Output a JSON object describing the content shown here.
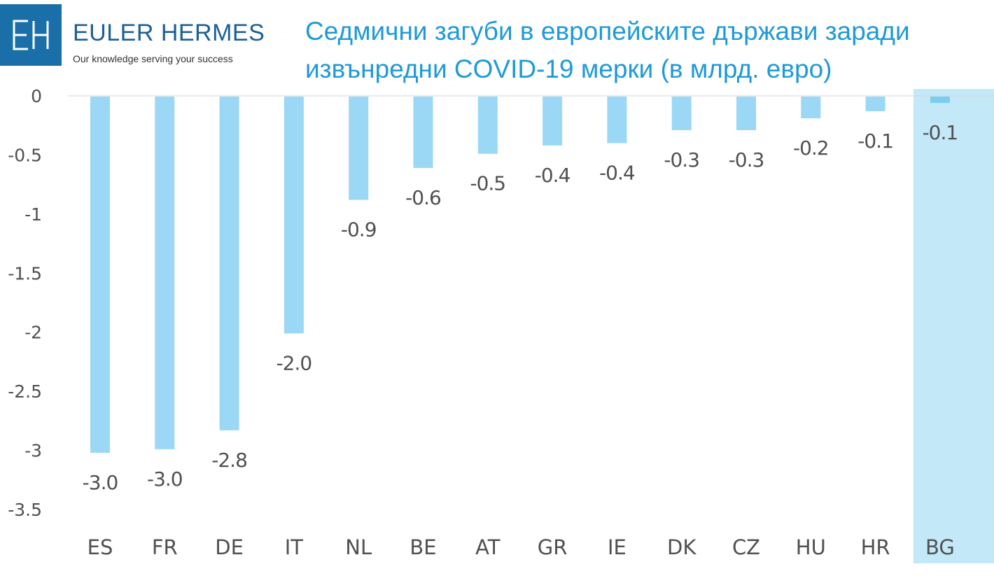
{
  "logo": {
    "mark": "EH",
    "name": "EULER HERMES",
    "tagline": "Our knowledge serving your success"
  },
  "colors": {
    "bar": "#9bd8f6",
    "highlight_bar": "#7acdf0",
    "highlight_band": "#c3e9f9",
    "axis_text": "#505050",
    "title": "#1f9ad6",
    "logo_bg": "#1a6fa8"
  },
  "chart_data": {
    "type": "bar",
    "title": "Седмични загуби в европейските държави заради извънредни COVID-19 мерки (в млрд. евро)",
    "categories": [
      "ES",
      "FR",
      "DE",
      "IT",
      "NL",
      "BE",
      "AT",
      "GR",
      "IE",
      "DK",
      "CZ",
      "HU",
      "HR",
      "BG"
    ],
    "values": [
      -3.02,
      -2.99,
      -2.83,
      -2.01,
      -0.88,
      -0.61,
      -0.49,
      -0.42,
      -0.4,
      -0.29,
      -0.29,
      -0.19,
      -0.13,
      -0.06
    ],
    "labels": [
      "-3.0",
      "-3.0",
      "-2.8",
      "-2.0",
      "-0.9",
      "-0.6",
      "-0.5",
      "-0.4",
      "-0.4",
      "-0.3",
      "-0.3",
      "-0.2",
      "-0.1",
      "-0.1"
    ],
    "highlight": "BG",
    "yticks": [
      0,
      -0.5,
      -1,
      -1.5,
      -2,
      -2.5,
      -3,
      -3.5
    ],
    "ytick_labels": [
      "0",
      "-0.5",
      "-1",
      "-1.5",
      "-2",
      "-2.5",
      "-3",
      "-3.5"
    ],
    "ylim": [
      -3.5,
      0
    ],
    "xlabel": "",
    "ylabel": "",
    "grid": false,
    "legend": "none"
  }
}
